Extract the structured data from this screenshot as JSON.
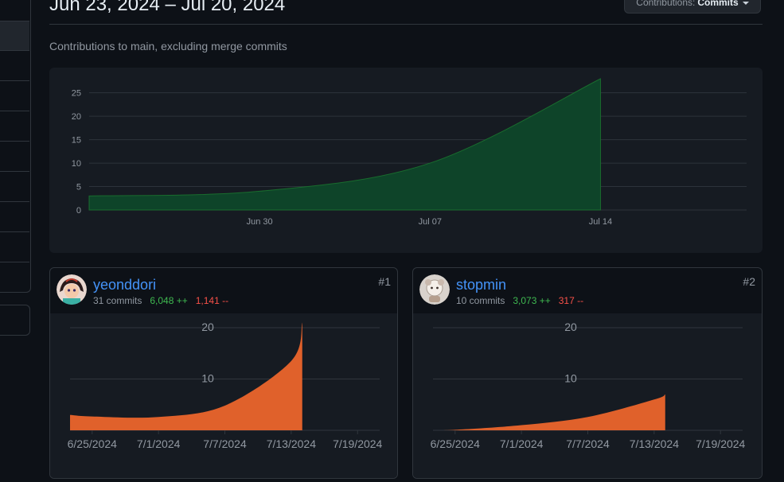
{
  "header": {
    "title": "Jun 23, 2024 – Jul 20, 2024",
    "contributions_label": "Contributions:",
    "contributions_value": "Commits",
    "subtitle": "Contributions to main, excluding merge commits"
  },
  "contributors": [
    {
      "username": "yeonddori",
      "commits": "31 commits",
      "additions": "6,048 ++",
      "deletions": "1,141 --",
      "rank": "#1"
    },
    {
      "username": "stopmin",
      "commits": "10 commits",
      "additions": "3,073 ++",
      "deletions": "317 --",
      "rank": "#2"
    }
  ],
  "colors": {
    "main_fill": "#0e4429",
    "main_stroke": "#196c2e",
    "card_fill": "#e0612b"
  },
  "chart_data": [
    {
      "type": "area",
      "title": "",
      "x_tick_labels": [
        "Jun 30",
        "Jul 07",
        "Jul 14"
      ],
      "x": [
        "2024-06-23",
        "2024-06-30",
        "2024-07-07",
        "2024-07-14"
      ],
      "values": [
        3,
        4,
        10,
        28
      ],
      "y_ticks": [
        0,
        5,
        10,
        15,
        20,
        25
      ],
      "ylim": [
        0,
        28
      ],
      "grid": true
    },
    {
      "type": "area",
      "series_owner": "yeonddori",
      "x_tick_labels": [
        "6/25/2024",
        "7/1/2024",
        "7/7/2024",
        "7/13/2024",
        "7/19/2024"
      ],
      "x": [
        "2024-06-23",
        "2024-06-25",
        "2024-07-01",
        "2024-07-07",
        "2024-07-13",
        "2024-07-14"
      ],
      "values": [
        3,
        2.7,
        2.6,
        4.8,
        13.5,
        21
      ],
      "y_ticks": [
        10,
        20
      ],
      "ylim": [
        0,
        20
      ],
      "grid": true
    },
    {
      "type": "area",
      "series_owner": "stopmin",
      "x_tick_labels": [
        "6/25/2024",
        "7/1/2024",
        "7/7/2024",
        "7/13/2024",
        "7/19/2024"
      ],
      "x": [
        "2024-06-23",
        "2024-06-25",
        "2024-07-01",
        "2024-07-07",
        "2024-07-13",
        "2024-07-14"
      ],
      "values": [
        0,
        0.1,
        1,
        2.6,
        6,
        7
      ],
      "y_ticks": [
        10,
        20
      ],
      "ylim": [
        0,
        20
      ],
      "grid": true
    }
  ]
}
